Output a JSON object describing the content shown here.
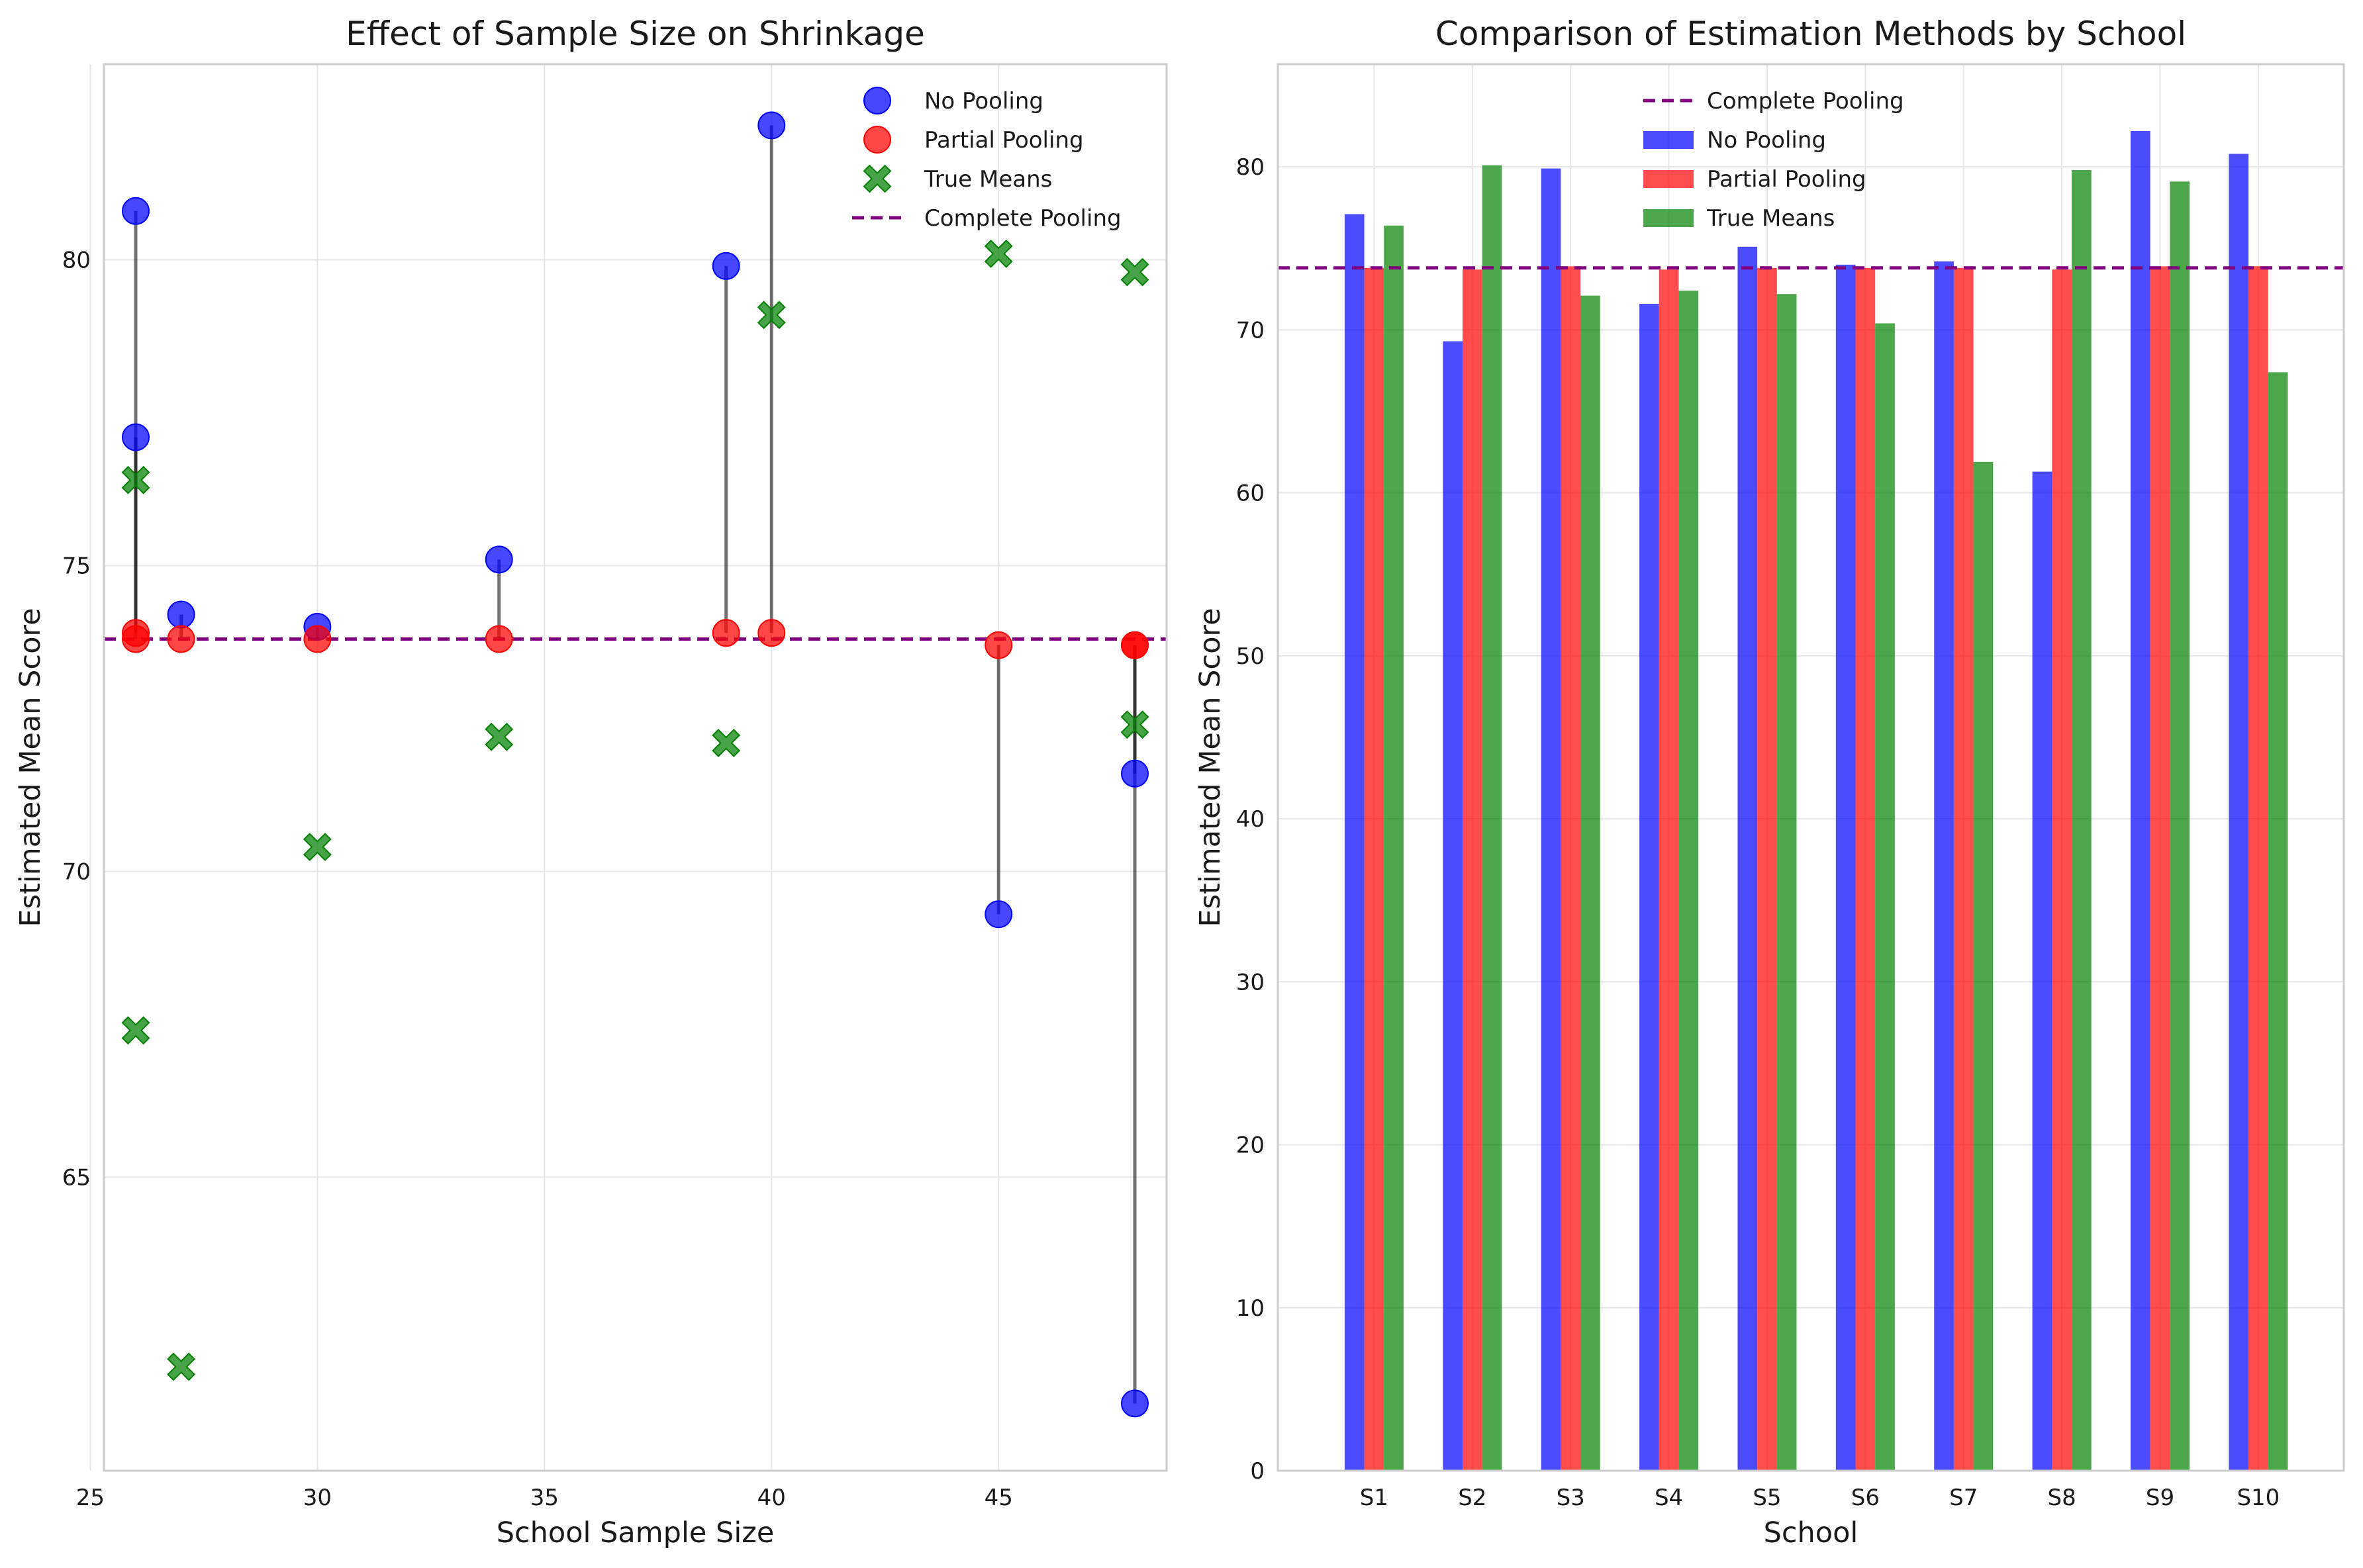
{
  "colors": {
    "no_pooling": "#0000ff",
    "partial_pooling": "#ff0000",
    "true_means": "#008000",
    "complete_pooling": "#800080",
    "shrink_line": "#000000",
    "grid": "#e6e6e6",
    "spine": "#cccccc"
  },
  "chart_data": [
    {
      "type": "scatter",
      "title": "Effect of Sample Size on Shrinkage",
      "xlabel": "School Sample Size",
      "ylabel": "Estimated Mean Score",
      "xlim": [
        25.3,
        48.7
      ],
      "ylim": [
        60.2,
        83.2
      ],
      "xticks": [
        25,
        30,
        35,
        40,
        45
      ],
      "yticks": [
        65,
        70,
        75,
        80
      ],
      "grid": true,
      "legend_position": "top-right",
      "legend": [
        "No Pooling",
        "Partial Pooling",
        "True Means",
        "Complete Pooling"
      ],
      "complete_pooling": 73.8,
      "schools": [
        {
          "school": "S1",
          "n": 26,
          "no_pooling": 77.1,
          "partial_pooling": 73.8,
          "true_mean": 76.4
        },
        {
          "school": "S2",
          "n": 45,
          "no_pooling": 69.3,
          "partial_pooling": 73.7,
          "true_mean": 80.1
        },
        {
          "school": "S3",
          "n": 39,
          "no_pooling": 79.9,
          "partial_pooling": 73.9,
          "true_mean": 72.1
        },
        {
          "school": "S4",
          "n": 48,
          "no_pooling": 71.6,
          "partial_pooling": 73.7,
          "true_mean": 72.4
        },
        {
          "school": "S5",
          "n": 34,
          "no_pooling": 75.1,
          "partial_pooling": 73.8,
          "true_mean": 72.2
        },
        {
          "school": "S6",
          "n": 30,
          "no_pooling": 74.0,
          "partial_pooling": 73.8,
          "true_mean": 70.4
        },
        {
          "school": "S7",
          "n": 27,
          "no_pooling": 74.2,
          "partial_pooling": 73.8,
          "true_mean": 61.9
        },
        {
          "school": "S8",
          "n": 48,
          "no_pooling": 61.3,
          "partial_pooling": 73.7,
          "true_mean": 79.8
        },
        {
          "school": "S9",
          "n": 40,
          "no_pooling": 82.2,
          "partial_pooling": 73.9,
          "true_mean": 79.1
        },
        {
          "school": "S10",
          "n": 26,
          "no_pooling": 80.8,
          "partial_pooling": 73.9,
          "true_mean": 67.4
        }
      ]
    },
    {
      "type": "bar",
      "title": "Comparison of Estimation Methods by School",
      "xlabel": "School",
      "ylabel": "Estimated Mean Score",
      "ylim": [
        0,
        86.3
      ],
      "yticks": [
        0,
        10,
        20,
        30,
        40,
        50,
        60,
        70,
        80
      ],
      "grid": true,
      "legend_position": "top-center",
      "categories": [
        "S1",
        "S2",
        "S3",
        "S4",
        "S5",
        "S6",
        "S7",
        "S8",
        "S9",
        "S10"
      ],
      "complete_pooling": 73.8,
      "legend": [
        "Complete Pooling",
        "No Pooling",
        "Partial Pooling",
        "True Means"
      ],
      "series": [
        {
          "name": "No Pooling",
          "values": [
            77.1,
            69.3,
            79.9,
            71.6,
            75.1,
            74.0,
            74.2,
            61.3,
            82.2,
            80.8
          ]
        },
        {
          "name": "Partial Pooling",
          "values": [
            73.8,
            73.7,
            73.9,
            73.7,
            73.8,
            73.8,
            73.8,
            73.7,
            73.9,
            73.9
          ]
        },
        {
          "name": "True Means",
          "values": [
            76.4,
            80.1,
            72.1,
            72.4,
            72.2,
            70.4,
            61.9,
            79.8,
            79.1,
            67.4
          ]
        }
      ]
    }
  ]
}
